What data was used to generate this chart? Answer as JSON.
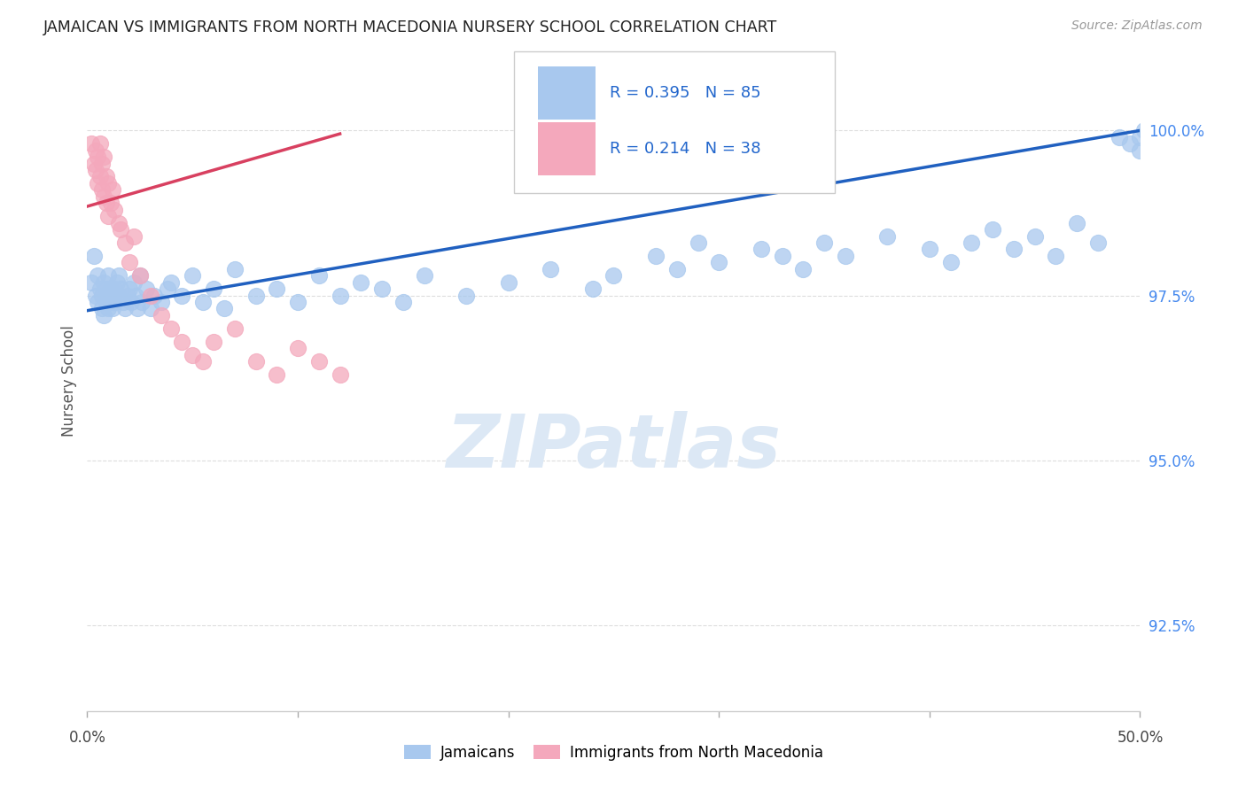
{
  "title": "JAMAICAN VS IMMIGRANTS FROM NORTH MACEDONIA NURSERY SCHOOL CORRELATION CHART",
  "source": "Source: ZipAtlas.com",
  "ylabel": "Nursery School",
  "ytick_values": [
    92.5,
    95.0,
    97.5,
    100.0
  ],
  "xlim": [
    0.0,
    50.0
  ],
  "ylim": [
    91.2,
    101.2
  ],
  "legend_label_blue": "Jamaicans",
  "legend_label_pink": "Immigrants from North Macedonia",
  "blue_color": "#A8C8EE",
  "pink_color": "#F4A8BC",
  "trendline_blue": "#2060C0",
  "trendline_pink": "#D84060",
  "watermark_text": "ZIPatlas",
  "watermark_color": "#DCE8F5",
  "blue_trendline_x": [
    0,
    50
  ],
  "blue_trendline_y": [
    97.27,
    100.0
  ],
  "pink_trendline_x": [
    0,
    12
  ],
  "pink_trendline_y": [
    98.85,
    99.95
  ],
  "blue_x": [
    0.2,
    0.3,
    0.4,
    0.5,
    0.5,
    0.6,
    0.7,
    0.7,
    0.8,
    0.8,
    0.9,
    0.9,
    1.0,
    1.0,
    1.0,
    1.1,
    1.1,
    1.2,
    1.2,
    1.3,
    1.3,
    1.4,
    1.5,
    1.5,
    1.6,
    1.7,
    1.8,
    1.9,
    2.0,
    2.1,
    2.2,
    2.3,
    2.4,
    2.5,
    2.6,
    2.8,
    3.0,
    3.2,
    3.5,
    3.8,
    4.0,
    4.5,
    5.0,
    5.5,
    6.0,
    6.5,
    7.0,
    8.0,
    9.0,
    10.0,
    11.0,
    12.0,
    13.0,
    14.0,
    15.0,
    16.0,
    18.0,
    20.0,
    22.0,
    24.0,
    25.0,
    27.0,
    28.0,
    29.0,
    30.0,
    32.0,
    33.0,
    34.0,
    35.0,
    36.0,
    38.0,
    40.0,
    41.0,
    42.0,
    43.0,
    44.0,
    45.0,
    46.0,
    47.0,
    48.0,
    49.0,
    49.5,
    50.0,
    50.0,
    50.2
  ],
  "blue_y": [
    97.7,
    98.1,
    97.5,
    97.8,
    97.4,
    97.6,
    97.3,
    97.5,
    97.7,
    97.2,
    97.6,
    97.4,
    97.8,
    97.5,
    97.3,
    97.4,
    97.6,
    97.5,
    97.3,
    97.6,
    97.4,
    97.7,
    97.5,
    97.8,
    97.6,
    97.4,
    97.3,
    97.5,
    97.6,
    97.4,
    97.7,
    97.5,
    97.3,
    97.8,
    97.4,
    97.6,
    97.3,
    97.5,
    97.4,
    97.6,
    97.7,
    97.5,
    97.8,
    97.4,
    97.6,
    97.3,
    97.9,
    97.5,
    97.6,
    97.4,
    97.8,
    97.5,
    97.7,
    97.6,
    97.4,
    97.8,
    97.5,
    97.7,
    97.9,
    97.6,
    97.8,
    98.1,
    97.9,
    98.3,
    98.0,
    98.2,
    98.1,
    97.9,
    98.3,
    98.1,
    98.4,
    98.2,
    98.0,
    98.3,
    98.5,
    98.2,
    98.4,
    98.1,
    98.6,
    98.3,
    99.9,
    99.8,
    99.9,
    99.7,
    100.0
  ],
  "pink_x": [
    0.2,
    0.3,
    0.4,
    0.4,
    0.5,
    0.5,
    0.6,
    0.6,
    0.7,
    0.7,
    0.8,
    0.8,
    0.9,
    0.9,
    1.0,
    1.0,
    1.1,
    1.2,
    1.3,
    1.5,
    1.6,
    1.8,
    2.0,
    2.2,
    2.5,
    3.0,
    3.5,
    4.0,
    4.5,
    5.0,
    5.5,
    6.0,
    7.0,
    8.0,
    9.0,
    10.0,
    11.0,
    12.0
  ],
  "pink_y": [
    99.8,
    99.5,
    99.7,
    99.4,
    99.6,
    99.2,
    99.8,
    99.3,
    99.5,
    99.1,
    99.6,
    99.0,
    99.3,
    98.9,
    99.2,
    98.7,
    98.9,
    99.1,
    98.8,
    98.6,
    98.5,
    98.3,
    98.0,
    98.4,
    97.8,
    97.5,
    97.2,
    97.0,
    96.8,
    96.6,
    96.5,
    96.8,
    97.0,
    96.5,
    96.3,
    96.7,
    96.5,
    96.3
  ]
}
